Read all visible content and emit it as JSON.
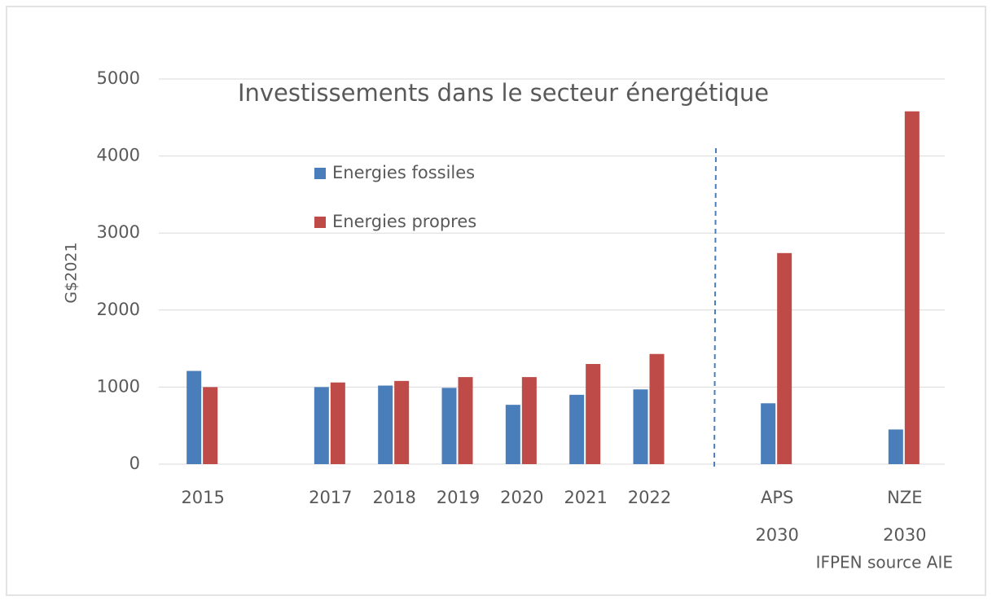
{
  "chart_data": {
    "type": "bar",
    "title": "Investissements dans le secteur énergétique",
    "y_label": "G$2021",
    "source": "IFPEN source AIE",
    "categories": [
      "2015",
      null,
      "2017",
      "2018",
      "2019",
      "2020",
      "2021",
      "2022",
      null,
      "APS 2030",
      null,
      "NZE 2030"
    ],
    "series": [
      {
        "name": "Energies fossiles",
        "color": "#4a7ebb",
        "values": [
          1210,
          null,
          1000,
          1020,
          990,
          770,
          900,
          970,
          null,
          790,
          null,
          450
        ]
      },
      {
        "name": "Energies propres",
        "color": "#be4b48",
        "values": [
          1000,
          null,
          1060,
          1080,
          1130,
          1130,
          1300,
          1430,
          null,
          2740,
          null,
          4580
        ]
      }
    ],
    "ylim": [
      0,
      5000
    ],
    "yticks": [
      0,
      1000,
      2000,
      3000,
      4000,
      5000
    ],
    "grid": true
  }
}
